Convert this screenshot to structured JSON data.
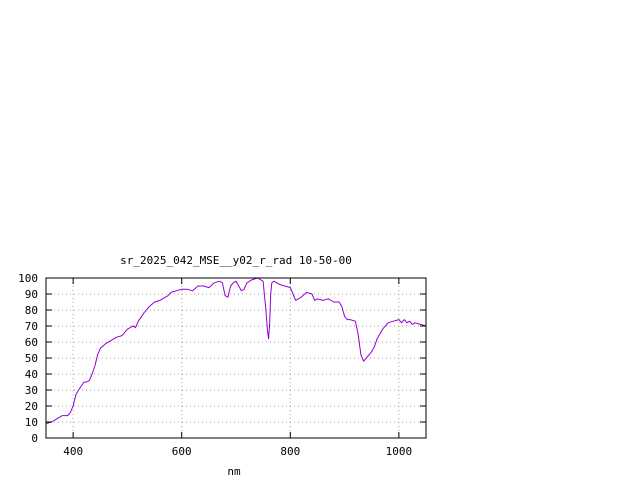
{
  "chart_data": {
    "type": "line",
    "title": "sr_2025_042_MSE__y02_r_rad 10-50-00",
    "xlabel": "nm",
    "ylabel": "",
    "xlim": [
      350,
      1050
    ],
    "ylim": [
      0,
      100
    ],
    "x_ticks": [
      400,
      600,
      800,
      1000
    ],
    "y_ticks": [
      0,
      10,
      20,
      30,
      40,
      50,
      60,
      70,
      80,
      90,
      100
    ],
    "grid": true,
    "legend": "none",
    "colors": {
      "series": "#9400d3",
      "grid": "#a0a0a0",
      "axes": "#000000"
    },
    "series": [
      {
        "x": [
          350,
          360,
          370,
          380,
          390,
          395,
          400,
          405,
          410,
          420,
          425,
          430,
          435,
          440,
          445,
          450,
          460,
          470,
          480,
          490,
          495,
          500,
          510,
          515,
          520,
          530,
          540,
          550,
          560,
          570,
          575,
          580,
          590,
          600,
          610,
          620,
          630,
          640,
          650,
          660,
          670,
          675,
          680,
          685,
          690,
          695,
          700,
          710,
          715,
          720,
          730,
          740,
          750,
          755,
          758,
          760,
          762,
          764,
          766,
          770,
          775,
          780,
          790,
          800,
          805,
          810,
          815,
          820,
          830,
          840,
          845,
          850,
          860,
          870,
          880,
          890,
          895,
          900,
          905,
          910,
          920,
          925,
          930,
          935,
          940,
          950,
          955,
          960,
          970,
          980,
          990,
          1000,
          1005,
          1010,
          1015,
          1020,
          1025,
          1030,
          1040,
          1050
        ],
        "y": [
          9,
          10,
          12,
          14,
          14,
          16,
          20,
          27,
          30,
          35,
          35,
          36,
          40,
          45,
          52,
          56,
          59,
          61,
          63,
          64,
          66,
          68,
          70,
          69,
          73,
          78,
          82,
          85,
          86,
          88,
          89,
          91,
          92,
          93,
          93,
          92,
          95,
          95,
          94,
          97,
          98,
          97,
          89,
          88,
          95,
          97,
          98,
          92,
          93,
          97,
          99,
          100,
          98,
          80,
          67,
          62,
          72,
          90,
          97,
          98,
          97,
          96,
          95,
          94,
          90,
          86,
          87,
          88,
          91,
          90,
          86,
          87,
          86,
          87,
          85,
          85,
          82,
          76,
          74,
          74,
          73,
          65,
          52,
          48,
          50,
          54,
          57,
          62,
          68,
          72,
          73,
          74,
          72,
          74,
          72,
          73,
          71,
          72,
          71,
          70
        ]
      }
    ]
  }
}
